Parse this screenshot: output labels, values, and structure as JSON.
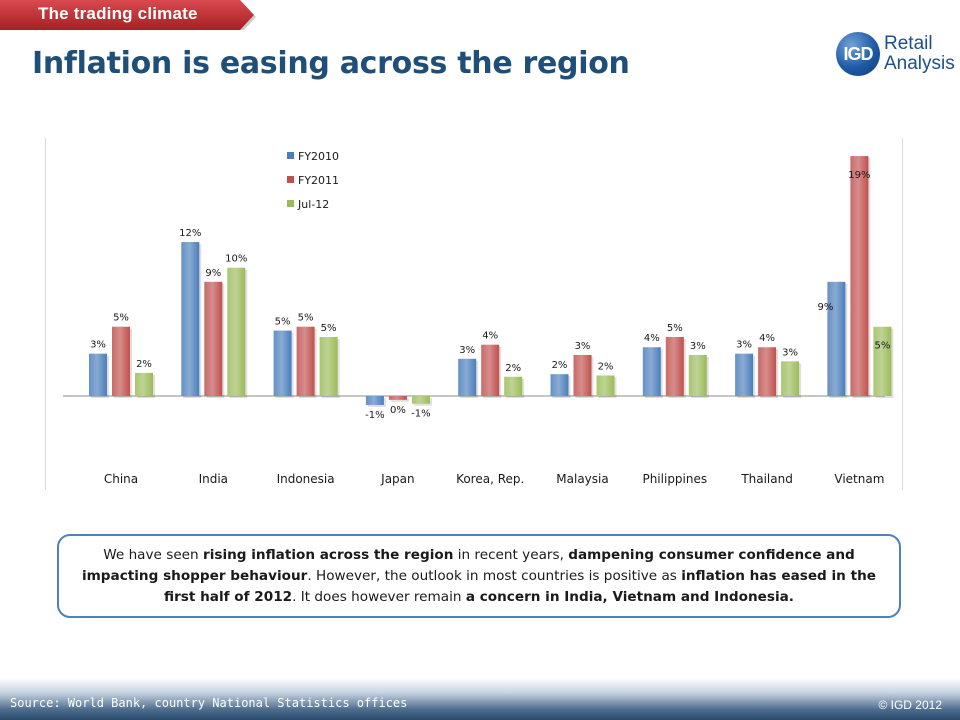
{
  "section_tab": {
    "label": "The trading climate",
    "color": "#c0282d"
  },
  "title": "Inflation is easing across the region",
  "logo": {
    "mark": "IGD",
    "line1": "Retail",
    "line2": "Analysis"
  },
  "chart_data": {
    "type": "bar",
    "title": "",
    "xlabel": "",
    "ylabel": "",
    "grid": false,
    "legend_position": "top-left",
    "ylim": [
      -2,
      20
    ],
    "categories": [
      "China",
      "India",
      "Indonesia",
      "Japan",
      "Korea, Rep.",
      "Malaysia",
      "Philippines",
      "Thailand",
      "Vietnam"
    ],
    "series": [
      {
        "name": "FY2010",
        "color": "#4a7ebb",
        "values": [
          3.3,
          12.0,
          5.1,
          -0.7,
          2.9,
          1.7,
          3.8,
          3.3,
          8.9
        ],
        "labels": [
          "3%",
          "12%",
          "5%",
          "-1%",
          "3%",
          "2%",
          "4%",
          "3%",
          "9%"
        ]
      },
      {
        "name": "FY2011",
        "color": "#c0504d",
        "values": [
          5.4,
          8.9,
          5.4,
          -0.3,
          4.0,
          3.2,
          4.6,
          3.8,
          18.7
        ],
        "labels": [
          "5%",
          "9%",
          "5%",
          "0%",
          "4%",
          "3%",
          "5%",
          "4%",
          "19%"
        ]
      },
      {
        "name": "Jul-12",
        "color": "#9bbb59",
        "values": [
          1.8,
          10.0,
          4.6,
          -0.6,
          1.5,
          1.6,
          3.2,
          2.7,
          5.4
        ],
        "labels": [
          "2%",
          "10%",
          "5%",
          "-1%",
          "2%",
          "2%",
          "3%",
          "3%",
          "5%"
        ]
      }
    ]
  },
  "callout": {
    "parts": [
      {
        "text": "We have seen ",
        "bold": false
      },
      {
        "text": "rising inflation across the region",
        "bold": true
      },
      {
        "text": " in recent years, ",
        "bold": false
      },
      {
        "text": "dampening consumer confidence  and impacting shopper behaviour",
        "bold": true
      },
      {
        "text": ".  However, the outlook in most countries is positive as ",
        "bold": false
      },
      {
        "text": "inflation has eased in the first half of 2012",
        "bold": true
      },
      {
        "text": ".  It does however remain ",
        "bold": false
      },
      {
        "text": "a concern in India, Vietnam and Indonesia.",
        "bold": true
      }
    ]
  },
  "footer": {
    "source": "Source: World Bank, country National Statistics offices",
    "copyright": "© IGD 2012"
  }
}
